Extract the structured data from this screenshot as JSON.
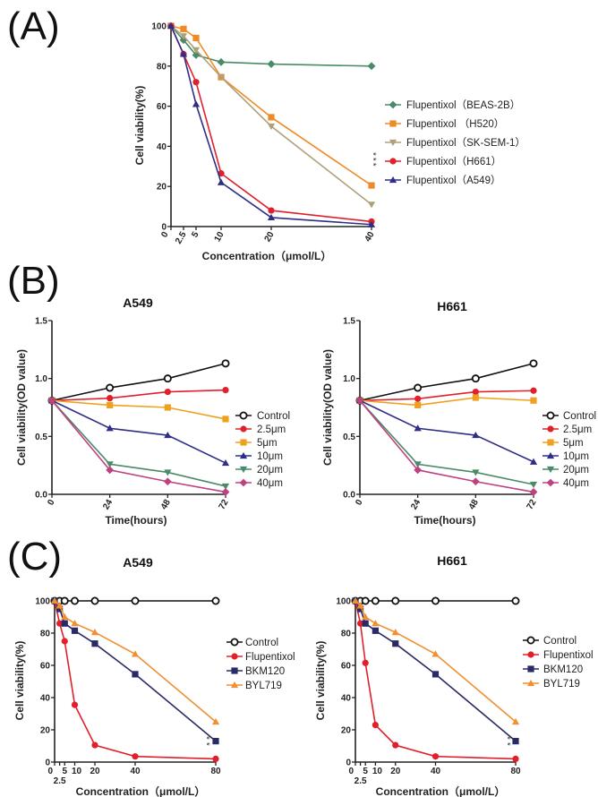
{
  "panels": [
    {
      "label": "(A)"
    },
    {
      "label": "(B)"
    },
    {
      "label": "(C)"
    }
  ],
  "chart_data": [
    {
      "type": "line",
      "title": "",
      "xlabel": "Concentration（μmol/L）",
      "ylabel": "Cell viability(%)",
      "xlim": [
        0,
        40
      ],
      "ylim": [
        0,
        100
      ],
      "xticks": [
        0,
        2.5,
        5,
        10,
        20,
        40
      ],
      "xtick_labels": [
        "0",
        "2.5",
        "5",
        "10",
        "20",
        "40"
      ],
      "yticks": [
        0,
        20,
        40,
        60,
        80,
        100
      ],
      "ytick_labels": [
        "0",
        "20",
        "40",
        "60",
        "80",
        "100"
      ],
      "legend": "right",
      "annotation": "***",
      "series": [
        {
          "name": "Flupentixol（BEAS-2B）",
          "color": "#4a8a68",
          "marker": "diamond",
          "x": [
            0,
            2.5,
            5,
            10,
            20,
            40
          ],
          "y": [
            100,
            93,
            85.5,
            82,
            81,
            80
          ]
        },
        {
          "name": "Flupentixol （H520）",
          "color": "#f08a24",
          "marker": "square",
          "x": [
            0,
            2.5,
            5,
            10,
            20,
            40
          ],
          "y": [
            100,
            98.5,
            94,
            74.5,
            54.5,
            20.5
          ]
        },
        {
          "name": "Flupentixol（SK-SEM-1）",
          "color": "#b0a07a",
          "marker": "triangle-down",
          "x": [
            0,
            2.5,
            5,
            10,
            20,
            40
          ],
          "y": [
            100,
            95,
            88,
            74.5,
            50,
            11
          ]
        },
        {
          "name": "Flupentixol（H661）",
          "color": "#e0202a",
          "marker": "circle",
          "x": [
            0,
            2.5,
            5,
            10,
            20,
            40
          ],
          "y": [
            100,
            86,
            72,
            26.5,
            8,
            2.5
          ]
        },
        {
          "name": "Flupentixol（A549）",
          "color": "#2e2e86",
          "marker": "triangle",
          "x": [
            0,
            2.5,
            5,
            10,
            20,
            40
          ],
          "y": [
            100,
            86,
            61,
            22,
            4.5,
            1
          ]
        }
      ]
    },
    {
      "type": "line",
      "title": "A549",
      "xlabel": "Time(hours)",
      "ylabel": "Cell viability(OD value)",
      "xlim": [
        0,
        72
      ],
      "ylim": [
        0,
        1.5
      ],
      "xticks": [
        0,
        24,
        48,
        72
      ],
      "xtick_labels": [
        "0",
        "24",
        "48",
        "72"
      ],
      "yticks": [
        0,
        0.5,
        1.0,
        1.5
      ],
      "ytick_labels": [
        "0.0",
        "0.5",
        "1.0",
        "1.5"
      ],
      "legend": "right",
      "series": [
        {
          "name": "Control",
          "color": "#111111",
          "marker": "open-circle",
          "x": [
            0,
            24,
            48,
            72
          ],
          "y": [
            0.81,
            0.92,
            1.0,
            1.13
          ]
        },
        {
          "name": "2.5μm",
          "color": "#e0202a",
          "marker": "circle",
          "x": [
            0,
            24,
            48,
            72
          ],
          "y": [
            0.81,
            0.83,
            0.885,
            0.9
          ]
        },
        {
          "name": "5μm",
          "color": "#f0a020",
          "marker": "square",
          "x": [
            0,
            24,
            48,
            72
          ],
          "y": [
            0.81,
            0.77,
            0.75,
            0.65
          ]
        },
        {
          "name": "10μm",
          "color": "#2e2e86",
          "marker": "triangle",
          "x": [
            0,
            24,
            48,
            72
          ],
          "y": [
            0.81,
            0.57,
            0.51,
            0.27
          ]
        },
        {
          "name": "20μm",
          "color": "#4a8a68",
          "marker": "triangle-down",
          "x": [
            0,
            24,
            48,
            72
          ],
          "y": [
            0.81,
            0.26,
            0.19,
            0.07
          ]
        },
        {
          "name": "40μm",
          "color": "#c04080",
          "marker": "diamond",
          "x": [
            0,
            24,
            48,
            72
          ],
          "y": [
            0.81,
            0.21,
            0.11,
            0.02
          ]
        }
      ]
    },
    {
      "type": "line",
      "title": "H661",
      "xlabel": "Time(hours)",
      "ylabel": "Cell viability(OD value)",
      "xlim": [
        0,
        72
      ],
      "ylim": [
        0,
        1.5
      ],
      "xticks": [
        0,
        24,
        48,
        72
      ],
      "xtick_labels": [
        "0",
        "24",
        "48",
        "72"
      ],
      "yticks": [
        0,
        0.5,
        1.0,
        1.5
      ],
      "ytick_labels": [
        "0.0",
        "0.5",
        "1.0",
        "1.5"
      ],
      "legend": "right",
      "series": [
        {
          "name": "Control",
          "color": "#111111",
          "marker": "open-circle",
          "x": [
            0,
            24,
            48,
            72
          ],
          "y": [
            0.81,
            0.92,
            1.0,
            1.13
          ]
        },
        {
          "name": "2.5μm",
          "color": "#e0202a",
          "marker": "circle",
          "x": [
            0,
            24,
            48,
            72
          ],
          "y": [
            0.81,
            0.825,
            0.885,
            0.895
          ]
        },
        {
          "name": "5μm",
          "color": "#f0a020",
          "marker": "square",
          "x": [
            0,
            24,
            48,
            72
          ],
          "y": [
            0.81,
            0.77,
            0.835,
            0.81
          ]
        },
        {
          "name": "10μm",
          "color": "#2e2e86",
          "marker": "triangle",
          "x": [
            0,
            24,
            48,
            72
          ],
          "y": [
            0.81,
            0.57,
            0.51,
            0.28
          ]
        },
        {
          "name": "20μm",
          "color": "#4a8a68",
          "marker": "triangle-down",
          "x": [
            0,
            24,
            48,
            72
          ],
          "y": [
            0.81,
            0.26,
            0.19,
            0.085
          ]
        },
        {
          "name": "40μm",
          "color": "#c04080",
          "marker": "diamond",
          "x": [
            0,
            24,
            48,
            72
          ],
          "y": [
            0.81,
            0.21,
            0.11,
            0.02
          ]
        }
      ]
    },
    {
      "type": "line",
      "title": "A549",
      "xlabel": "Concentration（μmol/L）",
      "ylabel": "Cell viability(%)",
      "xlim": [
        0,
        80
      ],
      "ylim": [
        0,
        100
      ],
      "xticks": [
        0,
        2.5,
        5,
        10,
        20,
        40,
        80
      ],
      "xtick_labels": [
        "0",
        "2.5",
        "5",
        "10",
        "20",
        "40",
        "80"
      ],
      "yticks": [
        0,
        20,
        40,
        60,
        80,
        100
      ],
      "ytick_labels": [
        "0",
        "20",
        "40",
        "60",
        "80",
        "100"
      ],
      "legend": "right",
      "annotation": "**",
      "series": [
        {
          "name": "Control",
          "color": "#111111",
          "marker": "open-circle",
          "x": [
            0,
            2.5,
            5,
            10,
            20,
            40,
            80
          ],
          "y": [
            100,
            100,
            100,
            100,
            100,
            100,
            100
          ]
        },
        {
          "name": "Flupentixol",
          "color": "#e0202a",
          "marker": "circle",
          "x": [
            0,
            2.5,
            5,
            10,
            20,
            40,
            80
          ],
          "y": [
            100,
            86,
            75,
            35.5,
            10.5,
            3.5,
            2
          ]
        },
        {
          "name": "BKM120",
          "color": "#2a2a66",
          "marker": "square",
          "x": [
            0,
            2.5,
            5,
            10,
            20,
            40,
            80
          ],
          "y": [
            100,
            95,
            86,
            81.5,
            73.5,
            54.5,
            13
          ]
        },
        {
          "name": "BYL719",
          "color": "#f09030",
          "marker": "triangle",
          "x": [
            0,
            2.5,
            5,
            10,
            20,
            40,
            80
          ],
          "y": [
            100,
            97,
            90,
            86,
            80.5,
            67,
            25
          ]
        }
      ]
    },
    {
      "type": "line",
      "title": "H661",
      "xlabel": "Concentration（μmol/L）",
      "ylabel": "Cell viability(%)",
      "xlim": [
        0,
        80
      ],
      "ylim": [
        0,
        100
      ],
      "xticks": [
        0,
        2.5,
        5,
        10,
        20,
        40,
        80
      ],
      "xtick_labels": [
        "0",
        "2.5",
        "5",
        "10",
        "20",
        "40",
        "80"
      ],
      "yticks": [
        0,
        20,
        40,
        60,
        80,
        100
      ],
      "ytick_labels": [
        "0",
        "20",
        "40",
        "60",
        "80",
        "100"
      ],
      "legend": "right",
      "annotation": "**",
      "series": [
        {
          "name": "Control",
          "color": "#111111",
          "marker": "open-circle",
          "x": [
            0,
            2.5,
            5,
            10,
            20,
            40,
            80
          ],
          "y": [
            100,
            100,
            100,
            100,
            100,
            100,
            100
          ]
        },
        {
          "name": "Flupentixol",
          "color": "#e0202a",
          "marker": "circle",
          "x": [
            0,
            2.5,
            5,
            10,
            20,
            40,
            80
          ],
          "y": [
            100,
            86,
            61.5,
            23,
            10.5,
            3.5,
            2
          ]
        },
        {
          "name": "BKM120",
          "color": "#2a2a66",
          "marker": "square",
          "x": [
            0,
            2.5,
            5,
            10,
            20,
            40,
            80
          ],
          "y": [
            100,
            95,
            86,
            81.5,
            73.5,
            54.5,
            13
          ]
        },
        {
          "name": "BYL719",
          "color": "#f09030",
          "marker": "triangle",
          "x": [
            0,
            2.5,
            5,
            10,
            20,
            40,
            80
          ],
          "y": [
            100,
            97,
            90,
            86,
            80.5,
            67,
            25
          ]
        }
      ]
    }
  ]
}
